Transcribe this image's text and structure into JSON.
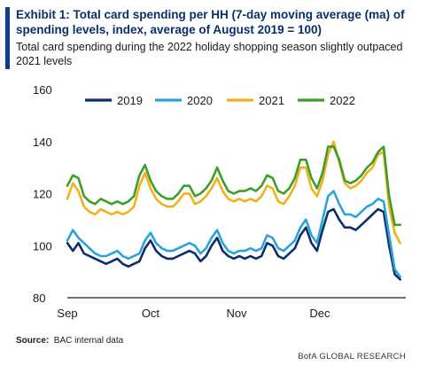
{
  "header": {
    "title": "Exhibit 1: Total card spending per HH (7-day moving average (ma) of spending levels, index, average of August 2019 = 100)",
    "subtitle": "Total card spending during the 2022 holiday shopping season slightly outpaced 2021 levels"
  },
  "footer": {
    "source_label": "Source:",
    "source_text": "BAC internal data",
    "brand": "BofA GLOBAL RESEARCH"
  },
  "colors": {
    "accent": "#0b3d91",
    "2019": "#0d2d6b",
    "2020": "#2aa3dc",
    "2021": "#f2b11c",
    "2022": "#3e9e2c"
  },
  "chart_data": {
    "type": "line",
    "title": "",
    "xlabel": "",
    "ylabel": "",
    "ylim": [
      80,
      160
    ],
    "yticks": [
      80,
      100,
      120,
      140,
      160
    ],
    "x_range": [
      0,
      122
    ],
    "xticks": [
      {
        "label": "Sep",
        "x": 0
      },
      {
        "label": "Oct",
        "x": 30
      },
      {
        "label": "Nov",
        "x": 61
      },
      {
        "label": "Dec",
        "x": 91
      }
    ],
    "grid": false,
    "legend": "top",
    "x": [
      0,
      2,
      4,
      6,
      8,
      10,
      12,
      14,
      16,
      18,
      20,
      22,
      24,
      26,
      28,
      30,
      32,
      34,
      36,
      38,
      40,
      42,
      44,
      46,
      48,
      50,
      52,
      54,
      56,
      58,
      60,
      62,
      64,
      66,
      68,
      70,
      72,
      74,
      76,
      78,
      80,
      82,
      84,
      86,
      88,
      90,
      92,
      94,
      96,
      98,
      100,
      102,
      104,
      106,
      108,
      110,
      112,
      114,
      116,
      118,
      120
    ],
    "series": [
      {
        "name": "2019",
        "values": [
          101,
          98,
          101,
          97,
          96,
          95,
          94,
          93,
          94,
          95,
          93,
          92,
          93,
          94,
          99,
          102,
          98,
          96,
          95,
          95,
          96,
          97,
          98,
          97,
          94,
          96,
          100,
          103,
          98,
          96,
          95,
          96,
          95,
          96,
          95,
          96,
          101,
          100,
          96,
          95,
          97,
          99,
          104,
          107,
          101,
          98,
          106,
          113,
          114,
          110,
          107,
          107,
          106,
          108,
          110,
          112,
          114,
          113,
          100,
          89,
          87
        ]
      },
      {
        "name": "2020",
        "values": [
          102,
          106,
          103,
          101,
          99,
          97,
          96,
          96,
          97,
          98,
          96,
          95,
          96,
          97,
          102,
          105,
          101,
          99,
          98,
          98,
          99,
          100,
          101,
          100,
          97,
          99,
          103,
          106,
          101,
          98,
          97,
          98,
          98,
          99,
          98,
          99,
          104,
          103,
          99,
          98,
          100,
          102,
          107,
          110,
          104,
          101,
          110,
          119,
          121,
          116,
          112,
          112,
          111,
          113,
          115,
          116,
          118,
          117,
          104,
          91,
          88
        ]
      },
      {
        "name": "2021",
        "values": [
          118,
          124,
          121,
          115,
          113,
          112,
          114,
          113,
          112,
          113,
          112,
          113,
          115,
          123,
          128,
          122,
          118,
          116,
          115,
          115,
          117,
          120,
          120,
          116,
          117,
          119,
          122,
          126,
          121,
          118,
          117,
          118,
          117,
          118,
          117,
          119,
          123,
          122,
          117,
          116,
          119,
          123,
          130,
          130,
          122,
          119,
          125,
          135,
          140,
          132,
          124,
          122,
          123,
          125,
          128,
          130,
          135,
          136,
          115,
          105,
          101
        ]
      },
      {
        "name": "2022",
        "values": [
          123,
          127,
          126,
          119,
          117,
          116,
          118,
          117,
          116,
          117,
          116,
          117,
          119,
          127,
          131,
          125,
          121,
          119,
          118,
          118,
          120,
          123,
          123,
          119,
          120,
          122,
          125,
          130,
          125,
          121,
          120,
          121,
          121,
          122,
          121,
          123,
          127,
          126,
          121,
          120,
          122,
          126,
          133,
          133,
          126,
          122,
          128,
          138,
          138,
          133,
          125,
          124,
          125,
          127,
          130,
          132,
          136,
          138,
          119,
          108,
          108
        ]
      }
    ]
  }
}
